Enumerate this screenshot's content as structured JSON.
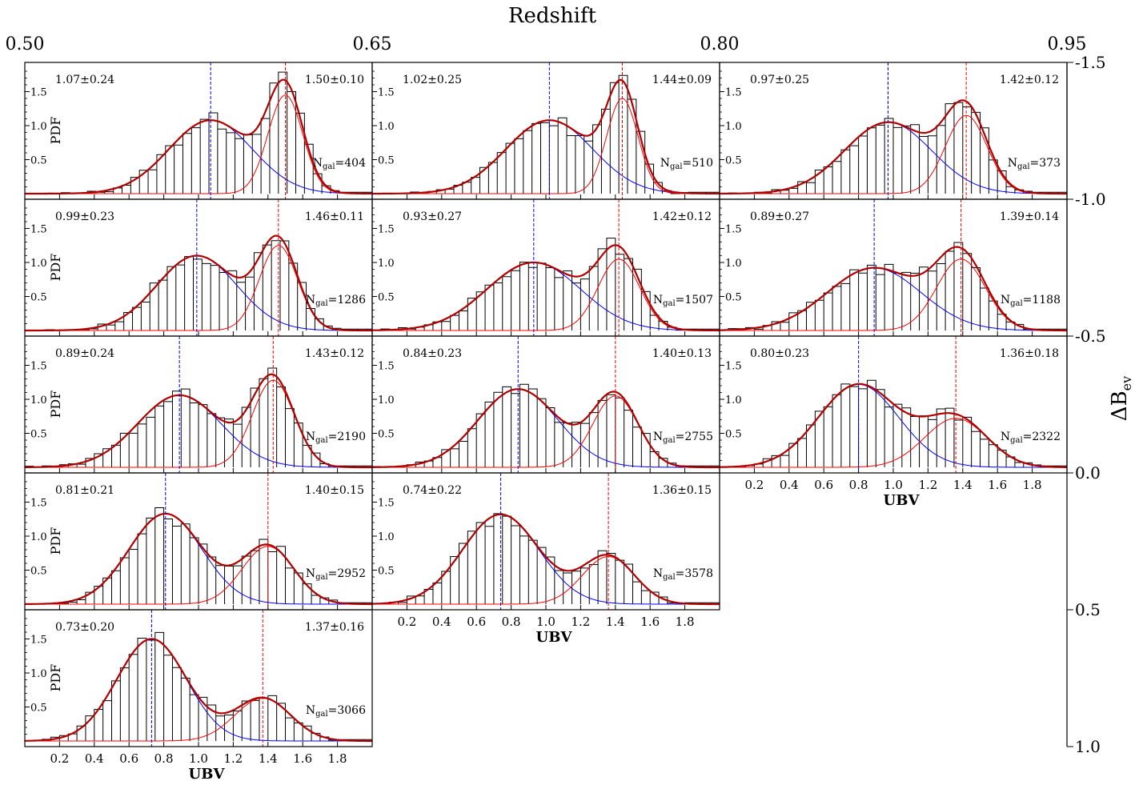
{
  "figure": {
    "top_axis": {
      "label": "Redshift",
      "ticks": [
        "0.50",
        "0.65",
        "0.80",
        "0.95"
      ],
      "range": [
        0.5,
        0.95
      ]
    },
    "right_axis": {
      "label_main": "ΔB",
      "label_sub": "ev",
      "ticks": [
        "-1.5",
        "-1.0",
        "-0.5",
        "0.0",
        "0.5",
        "1.0"
      ],
      "range": [
        -1.5,
        1.0
      ]
    },
    "panel_ylabel": "PDF",
    "panel_xlabel": "UBV",
    "n_label_main": "N",
    "n_label_sub": "gal",
    "x_ticks": [
      0.2,
      0.4,
      0.6,
      0.8,
      1.0,
      1.2,
      1.4,
      1.6,
      1.8
    ],
    "y_ticks": [
      0.5,
      1.0,
      1.5
    ],
    "colors": {
      "blue": "#0000ff",
      "red": "#ff0000",
      "total": "#b00000",
      "hist": "#000000"
    }
  },
  "chart_data": {
    "type": "grid of histograms with double-Gaussian fits",
    "x_range": [
      0.0,
      2.0
    ],
    "y_range": [
      0.0,
      1.85
    ],
    "panels": [
      {
        "row": 0,
        "col": 0,
        "blue_label": "1.07±0.24",
        "red_label": "1.50±0.10",
        "ngal": "404",
        "blue": {
          "mu": 1.07,
          "sigma": 0.24,
          "amp": 1.08
        },
        "red": {
          "mu": 1.5,
          "sigma": 0.1,
          "amp": 1.45
        }
      },
      {
        "row": 0,
        "col": 1,
        "blue_label": "1.02±0.25",
        "red_label": "1.44±0.09",
        "ngal": "510",
        "blue": {
          "mu": 1.02,
          "sigma": 0.25,
          "amp": 1.08
        },
        "red": {
          "mu": 1.44,
          "sigma": 0.09,
          "amp": 1.4
        }
      },
      {
        "row": 0,
        "col": 2,
        "blue_label": "0.97±0.25",
        "red_label": "1.42±0.12",
        "ngal": "373",
        "blue": {
          "mu": 0.97,
          "sigma": 0.25,
          "amp": 1.05
        },
        "red": {
          "mu": 1.42,
          "sigma": 0.12,
          "amp": 1.15
        }
      },
      {
        "row": 1,
        "col": 0,
        "blue_label": "0.99±0.23",
        "red_label": "1.46±0.11",
        "ngal": "1286",
        "blue": {
          "mu": 0.99,
          "sigma": 0.23,
          "amp": 1.1
        },
        "red": {
          "mu": 1.46,
          "sigma": 0.11,
          "amp": 1.25
        }
      },
      {
        "row": 1,
        "col": 1,
        "blue_label": "0.93±0.27",
        "red_label": "1.42±0.12",
        "ngal": "1507",
        "blue": {
          "mu": 0.93,
          "sigma": 0.27,
          "amp": 1.0
        },
        "red": {
          "mu": 1.42,
          "sigma": 0.12,
          "amp": 1.05
        }
      },
      {
        "row": 1,
        "col": 2,
        "blue_label": "0.89±0.27",
        "red_label": "1.39±0.14",
        "ngal": "1188",
        "blue": {
          "mu": 0.89,
          "sigma": 0.27,
          "amp": 0.92
        },
        "red": {
          "mu": 1.39,
          "sigma": 0.14,
          "amp": 1.05
        }
      },
      {
        "row": 2,
        "col": 0,
        "blue_label": "0.89±0.24",
        "red_label": "1.43±0.12",
        "ngal": "2190",
        "blue": {
          "mu": 0.89,
          "sigma": 0.24,
          "amp": 1.06
        },
        "red": {
          "mu": 1.43,
          "sigma": 0.12,
          "amp": 1.28
        }
      },
      {
        "row": 2,
        "col": 1,
        "blue_label": "0.84±0.23",
        "red_label": "1.40±0.13",
        "ngal": "2755",
        "blue": {
          "mu": 0.84,
          "sigma": 0.23,
          "amp": 1.15
        },
        "red": {
          "mu": 1.4,
          "sigma": 0.13,
          "amp": 1.05
        }
      },
      {
        "row": 2,
        "col": 2,
        "blue_label": "0.80±0.23",
        "red_label": "1.36±0.18",
        "ngal": "2322",
        "blue": {
          "mu": 0.8,
          "sigma": 0.23,
          "amp": 1.22
        },
        "red": {
          "mu": 1.36,
          "sigma": 0.18,
          "amp": 0.72
        }
      },
      {
        "row": 3,
        "col": 0,
        "blue_label": "0.81±0.21",
        "red_label": "1.40±0.15",
        "ngal": "2952",
        "blue": {
          "mu": 0.81,
          "sigma": 0.21,
          "amp": 1.33
        },
        "red": {
          "mu": 1.4,
          "sigma": 0.15,
          "amp": 0.85
        }
      },
      {
        "row": 3,
        "col": 1,
        "blue_label": "0.74±0.22",
        "red_label": "1.36±0.15",
        "ngal": "3578",
        "blue": {
          "mu": 0.74,
          "sigma": 0.22,
          "amp": 1.32
        },
        "red": {
          "mu": 1.36,
          "sigma": 0.15,
          "amp": 0.7
        }
      },
      {
        "row": 4,
        "col": 0,
        "blue_label": "0.73±0.20",
        "red_label": "1.37±0.16",
        "ngal": "3066",
        "blue": {
          "mu": 0.73,
          "sigma": 0.2,
          "amp": 1.5
        },
        "red": {
          "mu": 1.37,
          "sigma": 0.16,
          "amp": 0.63
        }
      }
    ]
  }
}
